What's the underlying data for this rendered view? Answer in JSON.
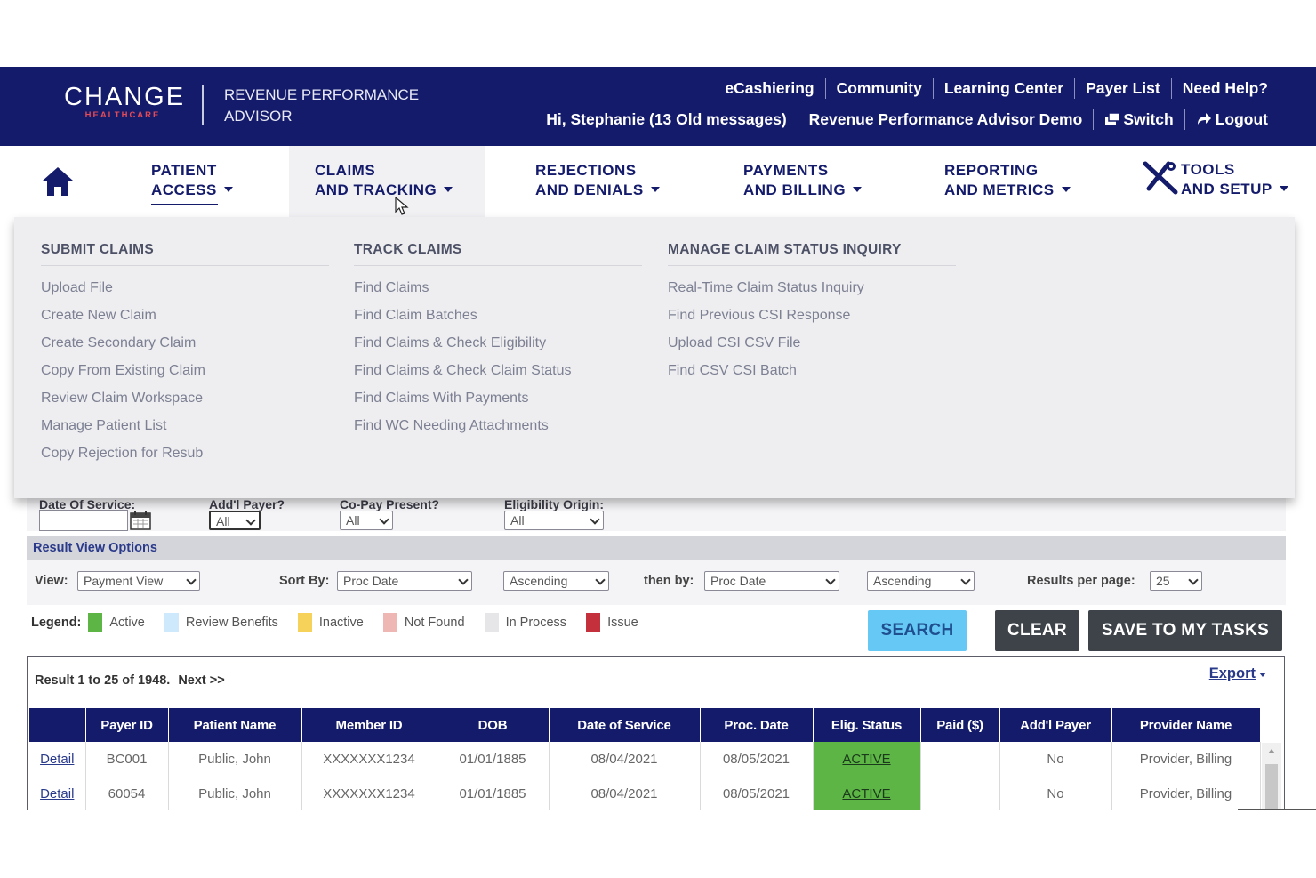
{
  "header": {
    "logo_main": "CHANGE",
    "logo_sub": "HEALTHCARE",
    "product_line1": "REVENUE PERFORMANCE",
    "product_line2": "ADVISOR",
    "links": [
      "eCashiering",
      "Community",
      "Learning Center",
      "Payer List",
      "Need Help?"
    ],
    "greeting": "Hi, Stephanie (13 Old messages)",
    "org": "Revenue Performance Advisor Demo",
    "switch": "Switch",
    "logout": "Logout"
  },
  "nav": {
    "items": [
      {
        "line1": "PATIENT",
        "line2": "ACCESS"
      },
      {
        "line1": "CLAIMS",
        "line2": "AND TRACKING"
      },
      {
        "line1": "REJECTIONS",
        "line2": "AND DENIALS"
      },
      {
        "line1": "PAYMENTS",
        "line2": "AND BILLING"
      },
      {
        "line1": "REPORTING",
        "line2": "AND METRICS"
      },
      {
        "line1": "TOOLS",
        "line2": "AND SETUP"
      }
    ]
  },
  "menu": {
    "columns": [
      {
        "heading": "SUBMIT CLAIMS",
        "items": [
          "Upload File",
          "Create New Claim",
          "Create Secondary Claim",
          "Copy From Existing Claim",
          "Review Claim Workspace",
          "Manage Patient List",
          "Copy Rejection for Resub"
        ]
      },
      {
        "heading": "TRACK CLAIMS",
        "items": [
          "Find Claims",
          "Find Claim Batches",
          "Find Claims & Check Eligibility",
          "Find Claims & Check Claim Status",
          "Find Claims With Payments",
          "Find WC Needing Attachments"
        ]
      },
      {
        "heading": "MANAGE CLAIM STATUS INQUIRY",
        "items": [
          "Real-Time Claim Status Inquiry",
          "Find Previous CSI Response",
          "Upload CSI CSV File",
          "Find CSV CSI Batch"
        ]
      }
    ]
  },
  "form": {
    "dos_label": "Date Of Service:",
    "addl_payer_label": "Add'l Payer?",
    "addl_payer_value": "All",
    "copay_label": "Co-Pay Present?",
    "copay_value": "All",
    "elig_origin_label": "Eligibility Origin:",
    "elig_origin_value": "All"
  },
  "result_view": {
    "title": "Result View Options",
    "view_label": "View:",
    "view_value": "Payment View",
    "sort_label": "Sort By:",
    "sort_value": "Proc Date",
    "sort_dir": "Ascending",
    "then_label": "then by:",
    "then_value": "Proc Date",
    "then_dir": "Ascending",
    "rpp_label": "Results per page:",
    "rpp_value": "25"
  },
  "legend": {
    "label": "Legend:",
    "items": [
      {
        "name": "Active",
        "color": "#5cb545"
      },
      {
        "name": "Review Benefits",
        "color": "#cde9fb"
      },
      {
        "name": "Inactive",
        "color": "#f6d25a"
      },
      {
        "name": "Not Found",
        "color": "#efb7b3"
      },
      {
        "name": "In Process",
        "color": "#e6e6e8"
      },
      {
        "name": "Issue",
        "color": "#c4303c"
      }
    ]
  },
  "buttons": {
    "search": "SEARCH",
    "clear": "CLEAR",
    "save": "SAVE TO MY TASKS"
  },
  "results": {
    "summary": "Result 1 to 25 of 1948.",
    "next": "Next >>",
    "export": "Export",
    "columns": [
      "",
      "Payer ID",
      "Patient Name",
      "Member ID",
      "DOB",
      "Date of Service",
      "Proc. Date",
      "Elig. Status",
      "Paid ($)",
      "Add'l Payer",
      "Provider Name"
    ],
    "rows": [
      [
        "Detail",
        "BC001",
        "Public, John",
        "XXXXXXX1234",
        "01/01/1885",
        "08/04/2021",
        "08/05/2021",
        "ACTIVE",
        "",
        "No",
        "Provider, Billing"
      ],
      [
        "Detail",
        "60054",
        "Public, John",
        "XXXXXXX1234",
        "01/01/1885",
        "08/04/2021",
        "08/05/2021",
        "ACTIVE",
        "",
        "No",
        "Provider, Billing"
      ]
    ]
  }
}
